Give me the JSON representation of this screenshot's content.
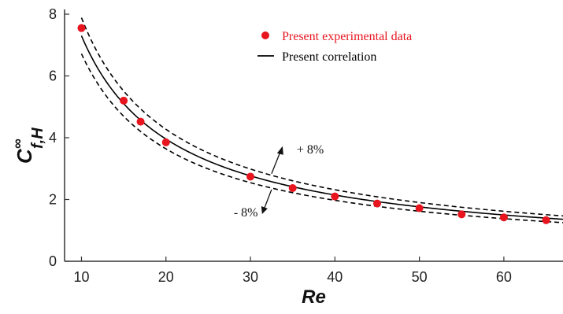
{
  "chart_data": {
    "type": "scatter",
    "xlabel": "Re",
    "ylabel": {
      "base": "C",
      "superscript": "∞",
      "subscript": "f,H"
    },
    "xlim": [
      8,
      67
    ],
    "ylim": [
      0,
      8
    ],
    "xticks": [
      10,
      20,
      30,
      40,
      50,
      60
    ],
    "yticks": [
      0,
      2,
      4,
      6,
      8
    ],
    "grid": false,
    "legend_position": "top-center",
    "series": [
      {
        "name": "Present experimental data",
        "kind": "markers",
        "color": "#e8141e",
        "x": [
          10,
          15,
          17,
          20,
          30,
          35,
          40,
          45,
          50,
          55,
          60,
          65
        ],
        "y": [
          7.55,
          5.2,
          4.52,
          3.85,
          2.74,
          2.37,
          2.1,
          1.87,
          1.72,
          1.52,
          1.42,
          1.33
        ]
      },
      {
        "name": "Present correlation",
        "kind": "solid-line",
        "color": "#000000",
        "x_start": 10,
        "x_end": 67,
        "y_start": 7.3,
        "y_end": 1.36
      }
    ],
    "band": {
      "upper_factor": 1.08,
      "lower_factor": 0.92,
      "upper_label": "+ 8%",
      "lower_label": "- 8%",
      "line_style": "dashed",
      "color": "#000000"
    }
  }
}
